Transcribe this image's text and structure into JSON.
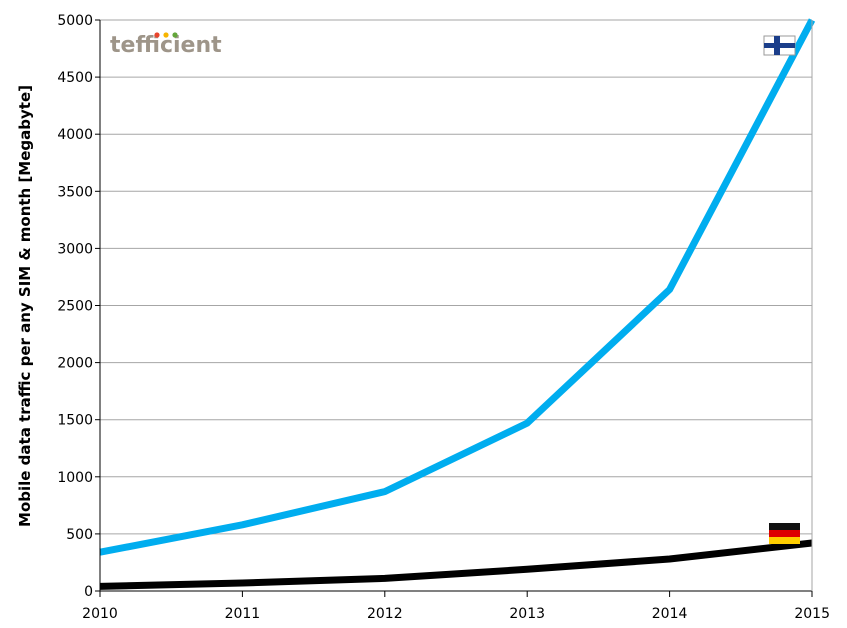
{
  "chart_data": {
    "type": "line",
    "title": "",
    "xlabel": "",
    "ylabel": "Mobile data traffic per any SIM & month [Megabyte]",
    "x": [
      2010,
      2011,
      2012,
      2013,
      2014,
      2015
    ],
    "xlim": [
      2010,
      2015
    ],
    "ylim": [
      0,
      5000
    ],
    "yticks": [
      0,
      500,
      1000,
      1500,
      2000,
      2500,
      3000,
      3500,
      4000,
      4500,
      5000
    ],
    "grid": "horizontal",
    "series": [
      {
        "values": [
          340,
          580,
          870,
          1470,
          2640,
          5000
        ],
        "color": "#00ADEF",
        "flag": "finland-flag-icon"
      },
      {
        "values": [
          40,
          70,
          110,
          190,
          280,
          420
        ],
        "color": "#000000",
        "flag": "germany-flag-icon"
      }
    ]
  },
  "logo": {
    "text": "tefficient",
    "color": "#9E9589",
    "dot_colors": [
      "#E8452C",
      "#F7B500",
      "#63A63A"
    ]
  },
  "colors": {
    "grid": "#A6A6A6",
    "axis": "#000000"
  }
}
